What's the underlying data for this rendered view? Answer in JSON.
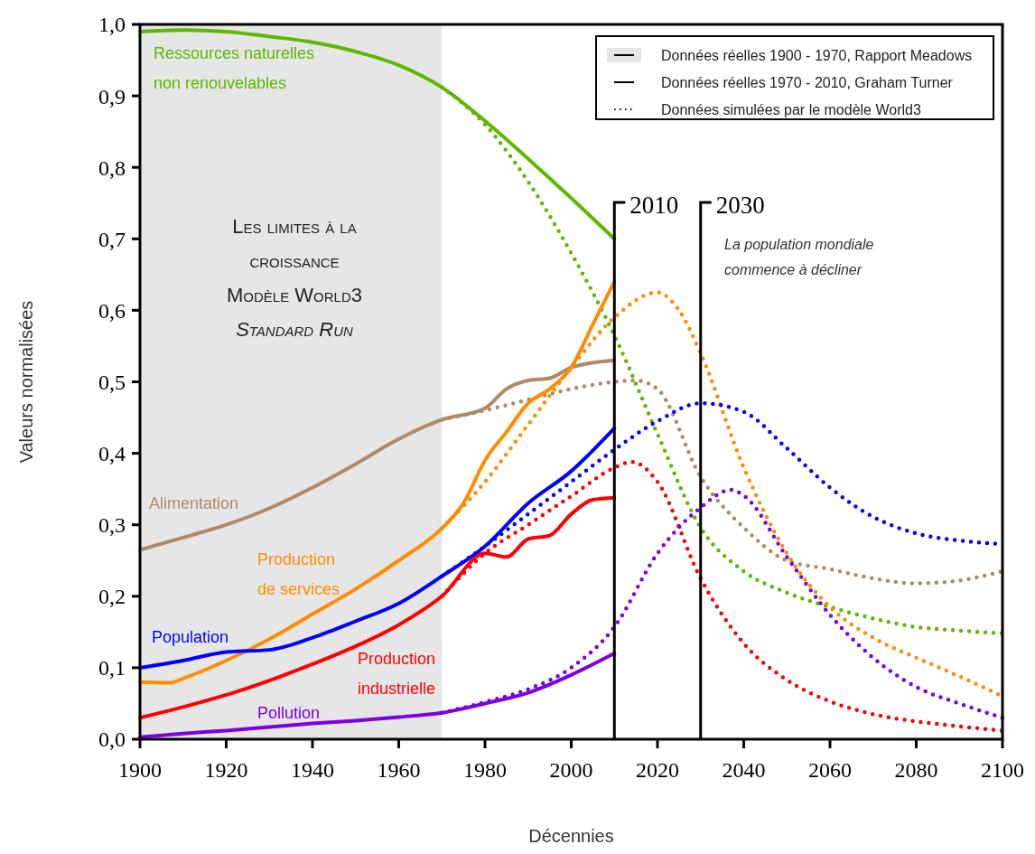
{
  "chart_data": {
    "type": "line",
    "title": "Les limites à la croissance",
    "subtitle": "Modèle World3 Standard Run",
    "xlabel": "Décennies",
    "ylabel": "Valeurs normalisées",
    "xlim": [
      1900,
      2100
    ],
    "xticks": [
      1900,
      1920,
      1940,
      1960,
      1980,
      2000,
      2020,
      2040,
      2060,
      2080,
      2100
    ],
    "ylim": [
      0,
      1
    ],
    "yticks": [
      {
        "value": 0,
        "label": "0,0"
      },
      {
        "value": 0.1,
        "label": "0,1"
      },
      {
        "value": 0.2,
        "label": "0,2"
      },
      {
        "value": 0.3,
        "label": "0,3"
      },
      {
        "value": 0.4,
        "label": "0,4"
      },
      {
        "value": 0.5,
        "label": "0,5"
      },
      {
        "value": 0.6,
        "label": "0,6"
      },
      {
        "value": 0.7,
        "label": "0,7"
      },
      {
        "value": 0.8,
        "label": "0,8"
      },
      {
        "value": 0.9,
        "label": "0,9"
      },
      {
        "value": 1,
        "label": "1,0"
      }
    ],
    "legend": false,
    "annotations": [
      "Données réelles 1900 - 1970, Rapport Meadows",
      "Données réelles 1970 - 2010, Graham Turner",
      "Données simulées par le modèle World3",
      "La population mondiale commence à décliner"
    ],
    "bands": [
      {
        "axis": "x",
        "from": 1900,
        "to": 1970,
        "label": null,
        "color": "#e6e6e6"
      }
    ],
    "ref_lines": [
      {
        "axis": "x",
        "value": 2010,
        "label": "2010",
        "color": "#000000"
      },
      {
        "axis": "x",
        "value": 2030,
        "label": "2030",
        "color": "#000000"
      }
    ],
    "series": [
      {
        "name": "Ressources naturelles non renouvelables",
        "color": "#5cb800",
        "line_style": "solid",
        "x": [
          1900,
          1910,
          1920,
          1930,
          1940,
          1950,
          1960,
          1970,
          1980,
          1990,
          2000,
          2010
        ],
        "values": [
          0.99,
          0.992,
          0.99,
          0.983,
          0.975,
          0.962,
          0.943,
          0.912,
          0.865,
          0.812,
          0.757,
          0.7
        ]
      },
      {
        "color": "#5cb800",
        "line_style": "dotted",
        "x": [
          1970,
          1980,
          1990,
          2000,
          2010,
          2020,
          2030,
          2040,
          2050,
          2060,
          2070,
          2080,
          2090,
          2100
        ],
        "values": [
          0.912,
          0.86,
          0.78,
          0.68,
          0.565,
          0.427,
          0.296,
          0.235,
          0.205,
          0.185,
          0.169,
          0.157,
          0.152,
          0.148
        ]
      },
      {
        "name": "Alimentation",
        "color": "#b08a68",
        "line_style": "solid",
        "x": [
          1900,
          1910,
          1920,
          1930,
          1940,
          1950,
          1960,
          1970,
          1980,
          1985,
          1990,
          1995,
          2000,
          2010
        ],
        "values": [
          0.265,
          0.282,
          0.3,
          0.323,
          0.352,
          0.385,
          0.42,
          0.447,
          0.463,
          0.49,
          0.502,
          0.505,
          0.52,
          0.53
        ]
      },
      {
        "color": "#b08a68",
        "line_style": "dotted",
        "x": [
          1970,
          1980,
          1990,
          2000,
          2010,
          2015,
          2020,
          2030,
          2040,
          2050,
          2060,
          2070,
          2080,
          2090,
          2100
        ],
        "values": [
          0.447,
          0.46,
          0.475,
          0.49,
          0.5,
          0.502,
          0.49,
          0.367,
          0.296,
          0.25,
          0.238,
          0.225,
          0.218,
          0.222,
          0.235
        ]
      },
      {
        "name": "Production de services",
        "color": "#ff8c00",
        "line_style": "solid",
        "x": [
          1900,
          1907,
          1910,
          1920,
          1930,
          1940,
          1950,
          1960,
          1970,
          1975,
          1980,
          1985,
          1990,
          1995,
          2000,
          2005,
          2010
        ],
        "values": [
          0.08,
          0.079,
          0.085,
          0.11,
          0.14,
          0.175,
          0.21,
          0.25,
          0.295,
          0.33,
          0.39,
          0.43,
          0.47,
          0.49,
          0.52,
          0.58,
          0.64
        ]
      },
      {
        "color": "#ff8c00",
        "line_style": "dotted",
        "x": [
          1970,
          1980,
          1990,
          2000,
          2010,
          2020,
          2025,
          2030,
          2040,
          2050,
          2060,
          2070,
          2080,
          2090,
          2100
        ],
        "values": [
          0.295,
          0.36,
          0.44,
          0.52,
          0.59,
          0.625,
          0.6,
          0.54,
          0.38,
          0.26,
          0.185,
          0.142,
          0.114,
          0.088,
          0.06
        ]
      },
      {
        "name": "Population",
        "color": "#0000ff",
        "line_style": "solid",
        "x": [
          1900,
          1910,
          1920,
          1930,
          1940,
          1950,
          1960,
          1970,
          1980,
          1990,
          2000,
          2010
        ],
        "values": [
          0.1,
          0.11,
          0.122,
          0.125,
          0.142,
          0.165,
          0.19,
          0.228,
          0.27,
          0.33,
          0.375,
          0.435
        ]
      },
      {
        "color": "#0000ff",
        "line_style": "dotted",
        "x": [
          1970,
          1980,
          1990,
          2000,
          2010,
          2020,
          2030,
          2040,
          2050,
          2060,
          2070,
          2080,
          2090,
          2100
        ],
        "values": [
          0.228,
          0.27,
          0.315,
          0.36,
          0.405,
          0.445,
          0.47,
          0.458,
          0.407,
          0.352,
          0.311,
          0.288,
          0.278,
          0.273
        ]
      },
      {
        "name": "Production industrielle",
        "color": "#ff0000",
        "line_style": "solid",
        "x": [
          1900,
          1910,
          1920,
          1930,
          1940,
          1950,
          1960,
          1970,
          1980,
          1985,
          1990,
          1995,
          2000,
          2005,
          2010
        ],
        "values": [
          0.03,
          0.045,
          0.062,
          0.082,
          0.105,
          0.13,
          0.16,
          0.2,
          0.26,
          0.255,
          0.28,
          0.285,
          0.315,
          0.335,
          0.338
        ]
      },
      {
        "color": "#ff0000",
        "line_style": "dotted",
        "x": [
          1970,
          1980,
          1990,
          2000,
          2010,
          2014,
          2020,
          2030,
          2040,
          2050,
          2060,
          2070,
          2080,
          2090,
          2100
        ],
        "values": [
          0.2,
          0.26,
          0.3,
          0.34,
          0.38,
          0.388,
          0.36,
          0.225,
          0.134,
          0.083,
          0.053,
          0.035,
          0.025,
          0.018,
          0.012
        ]
      },
      {
        "name": "Pollution",
        "color": "#7a00e6",
        "line_style": "solid",
        "x": [
          1900,
          1910,
          1920,
          1930,
          1940,
          1950,
          1960,
          1970,
          1980,
          1990,
          2000,
          2010
        ],
        "values": [
          0.003,
          0.008,
          0.012,
          0.017,
          0.022,
          0.026,
          0.031,
          0.037,
          0.05,
          0.065,
          0.09,
          0.12
        ]
      },
      {
        "color": "#7a00e6",
        "line_style": "dotted",
        "x": [
          1970,
          1980,
          1990,
          2000,
          2010,
          2020,
          2030,
          2037,
          2040,
          2050,
          2060,
          2070,
          2080,
          2090,
          2100
        ],
        "values": [
          0.037,
          0.052,
          0.07,
          0.1,
          0.157,
          0.26,
          0.324,
          0.349,
          0.341,
          0.255,
          0.174,
          0.114,
          0.073,
          0.05,
          0.03
        ]
      }
    ]
  }
}
